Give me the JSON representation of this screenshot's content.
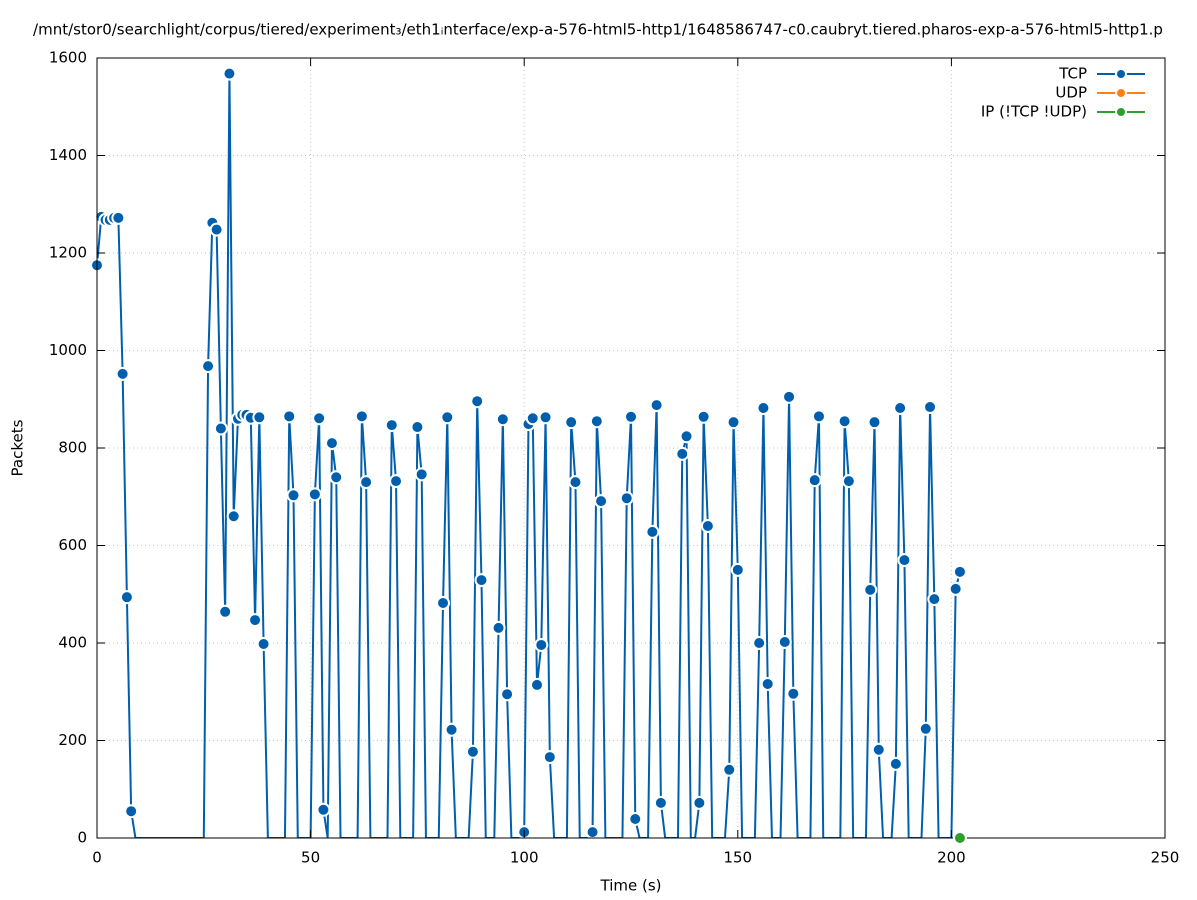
{
  "chart_data": {
    "type": "line",
    "title": "/mnt/stor0/searchlight/corpus/tiered/experiment₃/eth1ᵢnterface/exp-a-576-html5-http1/1648586747-c0.caubryt.tiered.pharos-exp-a-576-html5-http1.p",
    "xlabel": "Time (s)",
    "ylabel": "Packets",
    "xlim": [
      0,
      250
    ],
    "xticks": [
      0,
      50,
      100,
      150,
      200,
      250
    ],
    "ylim": [
      0,
      1600
    ],
    "yticks": [
      0,
      200,
      400,
      600,
      800,
      1000,
      1200,
      1400,
      1600
    ],
    "grid": true,
    "legend": "top-right",
    "series": [
      {
        "name": "TCP",
        "color": "#005fad",
        "x": [
          0,
          1,
          2,
          3,
          4,
          5,
          6,
          7,
          8,
          9,
          10,
          11,
          12,
          13,
          14,
          15,
          16,
          17,
          18,
          19,
          20,
          21,
          22,
          23,
          24,
          25,
          26,
          27,
          28,
          29,
          30,
          31,
          32,
          33,
          34,
          35,
          36,
          37,
          38,
          39,
          40,
          41,
          42,
          43,
          44,
          45,
          46,
          47,
          48,
          49,
          50,
          51,
          52,
          53,
          54,
          55,
          56,
          57,
          58,
          59,
          60,
          61,
          62,
          63,
          64,
          65,
          66,
          67,
          68,
          69,
          70,
          71,
          72,
          73,
          74,
          75,
          76,
          77,
          78,
          79,
          80,
          81,
          82,
          83,
          84,
          85,
          86,
          87,
          88,
          89,
          90,
          91,
          92,
          93,
          94,
          95,
          96,
          97,
          98,
          99,
          100,
          101,
          102,
          103,
          104,
          105,
          106,
          107,
          108,
          109,
          110,
          111,
          112,
          113,
          114,
          115,
          116,
          117,
          118,
          119,
          120,
          121,
          122,
          123,
          124,
          125,
          126,
          127,
          128,
          129,
          130,
          131,
          132,
          133,
          134,
          135,
          136,
          137,
          138,
          139,
          140,
          141,
          142,
          143,
          144,
          145,
          146,
          147,
          148,
          149,
          150,
          151,
          152,
          153,
          154,
          155,
          156,
          157,
          158,
          159,
          160,
          161,
          162,
          163,
          164,
          165,
          166,
          167,
          168,
          169,
          170,
          171,
          172,
          173,
          174,
          175,
          176,
          177,
          178,
          179,
          180,
          181,
          182,
          183,
          184,
          185,
          186,
          187,
          188,
          189,
          190,
          191,
          192,
          193,
          194,
          195,
          196,
          197,
          198,
          199,
          200,
          201,
          202
        ],
        "values": [
          1175,
          1274,
          1268,
          1268,
          1272,
          1272,
          952,
          494,
          55,
          0,
          0,
          0,
          0,
          0,
          0,
          0,
          0,
          0,
          0,
          0,
          0,
          0,
          0,
          0,
          0,
          0,
          968,
          1262,
          1248,
          840,
          464,
          1568,
          660,
          860,
          868,
          868,
          862,
          447,
          863,
          398,
          0,
          0,
          0,
          0,
          0,
          865,
          703,
          0,
          0,
          0,
          0,
          705,
          861,
          58,
          0,
          810,
          740,
          0,
          0,
          0,
          0,
          0,
          865,
          730,
          0,
          0,
          0,
          0,
          0,
          847,
          732,
          0,
          0,
          0,
          0,
          843,
          746,
          0,
          0,
          0,
          0,
          482,
          863,
          222,
          0,
          0,
          0,
          0,
          177,
          896,
          529,
          0,
          0,
          0,
          431,
          859,
          295,
          0,
          0,
          0,
          12,
          849,
          861,
          314,
          396,
          863,
          166,
          0,
          0,
          0,
          0,
          853,
          730,
          0,
          0,
          0,
          12,
          855,
          691,
          0,
          0,
          0,
          0,
          0,
          697,
          864,
          39,
          0,
          0,
          0,
          628,
          888,
          72,
          0,
          0,
          0,
          0,
          788,
          824,
          0,
          0,
          72,
          864,
          640,
          0,
          0,
          0,
          0,
          140,
          853,
          550,
          0,
          0,
          0,
          0,
          400,
          882,
          316,
          0,
          0,
          0,
          402,
          905,
          296,
          0,
          0,
          0,
          0,
          734,
          865,
          0,
          0,
          0,
          0,
          0,
          855,
          732,
          0,
          0,
          0,
          0,
          509,
          853,
          181,
          0,
          0,
          0,
          152,
          882,
          570,
          0,
          0,
          0,
          0,
          224,
          884,
          490,
          0,
          0,
          0,
          0,
          511,
          546
        ]
      },
      {
        "name": "UDP",
        "color": "#ff8010",
        "x": [],
        "values": []
      },
      {
        "name": "IP (!TCP  !UDP)",
        "color": "#2ca02c",
        "x": [
          202
        ],
        "values": [
          0
        ]
      }
    ]
  }
}
